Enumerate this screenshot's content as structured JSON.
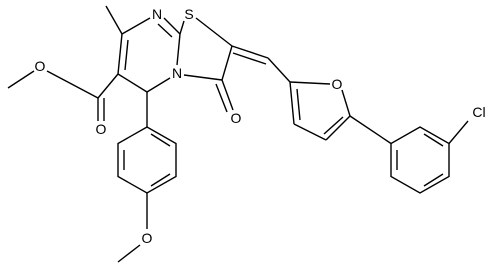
{
  "atoms": [
    "N",
    "S",
    "N",
    "O",
    "O",
    "O",
    "O",
    "O",
    "Cl"
  ]
}
